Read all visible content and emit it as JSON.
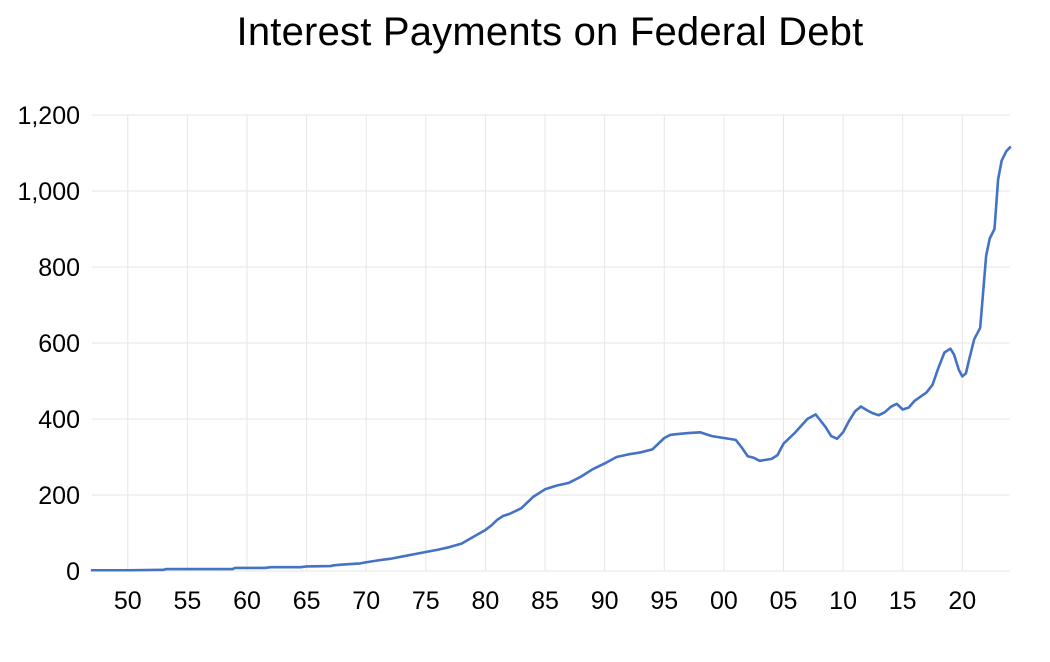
{
  "chart_data": {
    "type": "line",
    "title": "Interest Payments on Federal Debt",
    "xlabel": "",
    "ylabel": "",
    "ylim": [
      0,
      1200
    ],
    "xlim": [
      1947,
      2024
    ],
    "yticks": [
      0,
      200,
      400,
      600,
      800,
      1000,
      1200
    ],
    "ytick_labels": [
      "0",
      "200",
      "400",
      "600",
      "800",
      "1,000",
      "1,200"
    ],
    "xticks": [
      1950,
      1955,
      1960,
      1965,
      1970,
      1975,
      1980,
      1985,
      1990,
      1995,
      2000,
      2005,
      2010,
      2015,
      2020
    ],
    "xtick_labels": [
      "50",
      "55",
      "60",
      "65",
      "70",
      "75",
      "80",
      "85",
      "90",
      "95",
      "00",
      "05",
      "10",
      "15",
      "20"
    ],
    "grid": "vertical and horizontal",
    "line_color": "#4472c4",
    "series": [
      {
        "x": [
          1947.0,
          1950.0,
          1953.0,
          1953.2,
          1958.8,
          1959.0,
          1961.5,
          1962.0,
          1964.5,
          1965.0,
          1967.0,
          1967.3,
          1968.0,
          1968.5,
          1969.5,
          1970.0,
          1971.0,
          1972.0,
          1973.0,
          1974.0,
          1975.0,
          1976.0,
          1977.0,
          1978.0,
          1979.0,
          1980.0,
          1980.5,
          1981.0,
          1981.5,
          1982.0,
          1983.0,
          1984.0,
          1985.0,
          1986.0,
          1987.0,
          1988.0,
          1989.0,
          1990.0,
          1991.0,
          1992.0,
          1993.0,
          1994.0,
          1995.0,
          1995.5,
          1996.0,
          1997.0,
          1998.0,
          1999.0,
          2000.0,
          2001.0,
          2001.5,
          2002.0,
          2002.5,
          2003.0,
          2004.0,
          2004.5,
          2005.0,
          2006.0,
          2007.0,
          2007.7,
          2008.0,
          2008.5,
          2009.0,
          2009.5,
          2010.0,
          2010.5,
          2011.0,
          2011.5,
          2012.0,
          2012.5,
          2013.0,
          2013.5,
          2014.0,
          2014.5,
          2015.0,
          2015.5,
          2016.0,
          2017.0,
          2017.5,
          2018.0,
          2018.5,
          2019.0,
          2019.3,
          2019.7,
          2020.0,
          2020.3,
          2020.6,
          2021.0,
          2021.5,
          2022.0,
          2022.3,
          2022.7,
          2023.0,
          2023.3,
          2023.7,
          2024.0
        ],
        "values": [
          2,
          2,
          3,
          5,
          5,
          8,
          8,
          10,
          10,
          12,
          13,
          15,
          17,
          18,
          20,
          23,
          28,
          32,
          38,
          44,
          50,
          56,
          63,
          72,
          90,
          108,
          120,
          135,
          145,
          150,
          165,
          195,
          215,
          225,
          232,
          248,
          268,
          283,
          300,
          307,
          312,
          320,
          350,
          358,
          360,
          363,
          365,
          355,
          350,
          345,
          325,
          302,
          298,
          290,
          295,
          305,
          335,
          365,
          400,
          412,
          400,
          380,
          355,
          348,
          365,
          395,
          420,
          433,
          423,
          415,
          410,
          418,
          432,
          440,
          425,
          430,
          448,
          470,
          490,
          535,
          575,
          585,
          570,
          530,
          512,
          520,
          560,
          610,
          640,
          830,
          875,
          900,
          1030,
          1080,
          1105,
          1115
        ]
      }
    ]
  }
}
